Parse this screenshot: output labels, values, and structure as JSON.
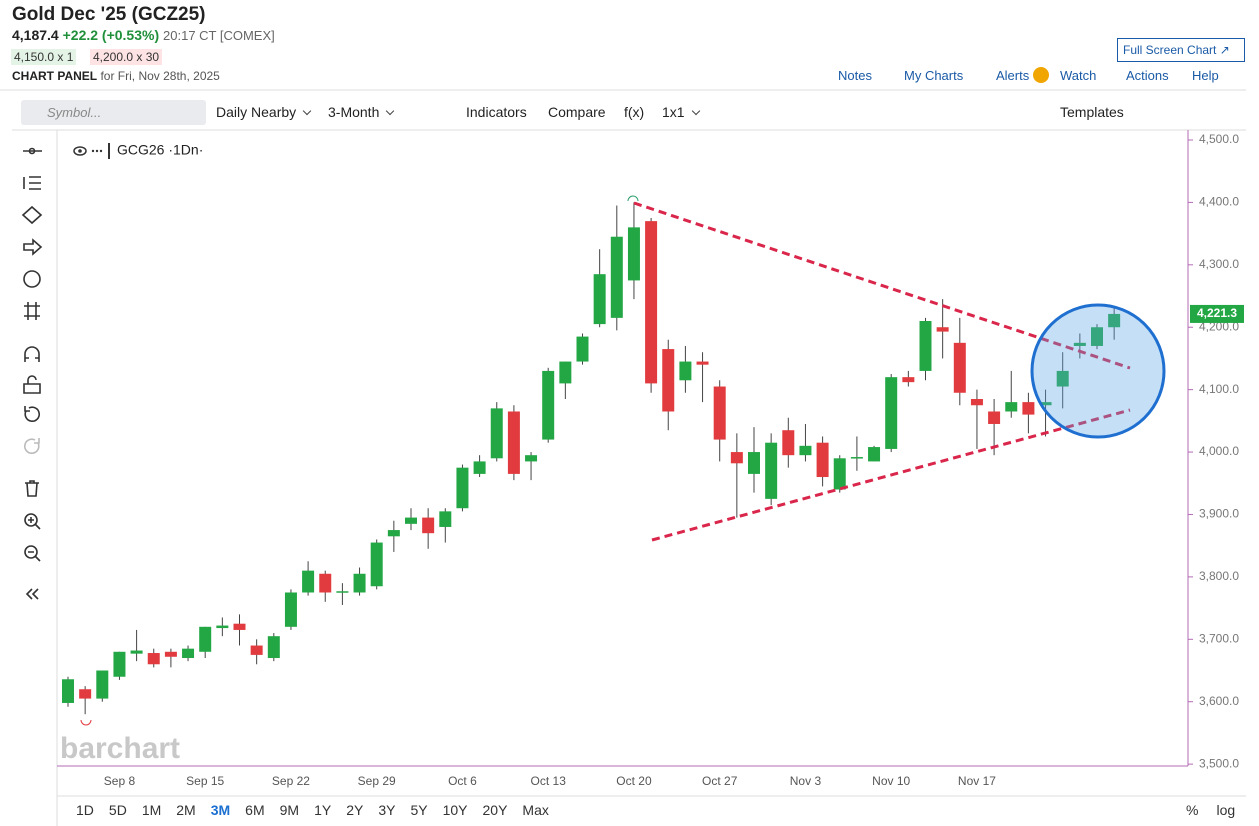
{
  "header": {
    "title": "Gold Dec '25 (GCZ25)",
    "price": "4,187.4",
    "change": "+22.2 (+0.53%)",
    "time": "20:17 CT [COMEX]",
    "bid": "4,150.0 x 1",
    "ask": "4,200.0 x 30",
    "panel": "CHART PANEL",
    "panel_date": "for Fri, Nov 28th, 2025",
    "full_screen": "Full Screen Chart"
  },
  "nav": [
    "Notes",
    "My Charts",
    "Alerts",
    "Watch",
    "Actions",
    "Help"
  ],
  "toolbar": {
    "symbol_placeholder": "Symbol...",
    "aggregation": "Daily Nearby",
    "range": "3-Month",
    "indicators": "Indicators",
    "compare": "Compare",
    "fx": "f(x)",
    "layout": "1x1",
    "templates": "Templates"
  },
  "chart_data": {
    "type": "candlestick",
    "legend": "GCG26 ·1Dn·",
    "watermark": "barchart",
    "categories": [
      null,
      null,
      null,
      "Sep 8",
      null,
      null,
      null,
      null,
      "Sep 15",
      null,
      null,
      null,
      null,
      "Sep 22",
      null,
      null,
      null,
      null,
      "Sep 29",
      null,
      null,
      null,
      null,
      "Oct 6",
      null,
      null,
      null,
      null,
      "Oct 13",
      null,
      null,
      null,
      null,
      "Oct 20",
      null,
      null,
      null,
      null,
      "Oct 27",
      null,
      null,
      null,
      null,
      "Nov 3",
      null,
      null,
      null,
      null,
      "Nov 10",
      null,
      null,
      null,
      null,
      "Nov 17",
      null,
      null,
      null,
      null,
      null,
      null,
      null,
      null
    ],
    "open": [
      3598,
      3620,
      3605,
      3640,
      3677,
      3678,
      3680,
      3670,
      3680,
      3718,
      3725,
      3690,
      3670,
      3720,
      3775,
      3805,
      3775,
      3775,
      3785,
      3865,
      3885,
      3895,
      3880,
      3910,
      3965,
      3990,
      4065,
      3985,
      4020,
      4110,
      4145,
      4205,
      4215,
      4275,
      4370,
      4165,
      4115,
      4145,
      4105,
      4000,
      3965,
      3925,
      4035,
      3995,
      4015,
      3940,
      3990,
      3985,
      4005,
      4120,
      4130,
      4200,
      4175,
      4085,
      4065,
      4065,
      4080,
      4075,
      4105,
      4170,
      4170,
      4200
    ],
    "high": [
      3640,
      3625,
      3650,
      3680,
      3715,
      3685,
      3685,
      3690,
      3720,
      3735,
      3740,
      3700,
      3710,
      3780,
      3825,
      3810,
      3790,
      3815,
      3860,
      3890,
      3910,
      3910,
      3910,
      3980,
      3995,
      4080,
      4075,
      4000,
      4135,
      4145,
      4190,
      4325,
      4395,
      4400,
      4375,
      4180,
      4170,
      4160,
      4115,
      4030,
      4040,
      4030,
      4055,
      4045,
      4025,
      3995,
      4025,
      4010,
      4125,
      4130,
      4215,
      4245,
      4215,
      4100,
      4085,
      4130,
      4095,
      4100,
      4160,
      4190,
      4205,
      4230
    ],
    "low": [
      3592,
      3580,
      3600,
      3635,
      3665,
      3655,
      3655,
      3665,
      3670,
      3705,
      3690,
      3660,
      3665,
      3715,
      3770,
      3760,
      3755,
      3770,
      3780,
      3840,
      3875,
      3845,
      3855,
      3905,
      3960,
      3985,
      3955,
      3955,
      4015,
      4085,
      4140,
      4200,
      4195,
      4245,
      4095,
      4035,
      4095,
      4080,
      3985,
      3895,
      3935,
      3915,
      3975,
      3985,
      3945,
      3935,
      3970,
      3985,
      4000,
      4105,
      4115,
      4150,
      4075,
      4005,
      3995,
      4055,
      4030,
      4025,
      4070,
      4150,
      4165,
      4180
    ],
    "close": [
      3636,
      3605,
      3650,
      3680,
      3682,
      3660,
      3672,
      3685,
      3720,
      3722,
      3715,
      3675,
      3705,
      3775,
      3810,
      3775,
      3777,
      3805,
      3855,
      3875,
      3895,
      3870,
      3905,
      3975,
      3985,
      4070,
      3965,
      3995,
      4130,
      4145,
      4185,
      4285,
      4345,
      4360,
      4110,
      4065,
      4145,
      4140,
      4020,
      3982,
      4000,
      4015,
      3995,
      4010,
      3960,
      3990,
      3992,
      4008,
      4120,
      4112,
      4210,
      4193,
      4095,
      4075,
      4045,
      4080,
      4060,
      4080,
      4130,
      4175,
      4200,
      4221.3
    ],
    "last_label": "4,221.3",
    "up_color": "#23a745",
    "down_color": "#e23b3f",
    "ylim": [
      3497,
      4516
    ],
    "yticks": [
      {
        "value": 3500,
        "label": "3,500.0"
      },
      {
        "value": 3600,
        "label": "3,600.0"
      },
      {
        "value": 3700,
        "label": "3,700.0"
      },
      {
        "value": 3800,
        "label": "3,800.0"
      },
      {
        "value": 3900,
        "label": "3,900.0"
      },
      {
        "value": 4000,
        "label": "4,000.0"
      },
      {
        "value": 4100,
        "label": "4,100.0"
      },
      {
        "value": 4200,
        "label": "4,200.0"
      },
      {
        "value": 4300,
        "label": "4,300.0"
      },
      {
        "value": 4400,
        "label": "4,400.0"
      },
      {
        "value": 4500,
        "label": "4,500.0"
      }
    ],
    "grid": false
  },
  "periods": [
    "1D",
    "5D",
    "1M",
    "2M",
    "3M",
    "6M",
    "9M",
    "1Y",
    "2Y",
    "3Y",
    "5Y",
    "10Y",
    "20Y",
    "Max"
  ],
  "active_period_index": 4,
  "scale_options": [
    "%",
    "log"
  ]
}
